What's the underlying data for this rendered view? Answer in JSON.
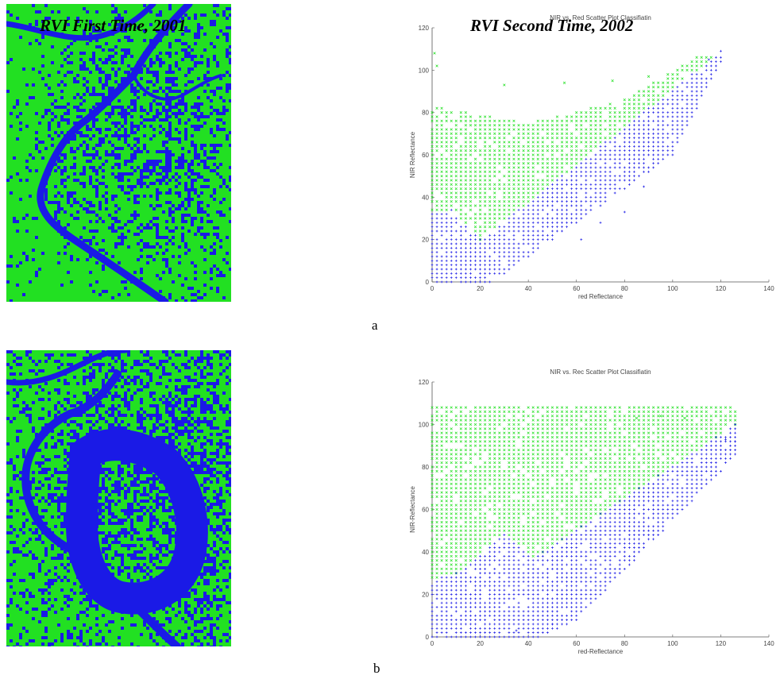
{
  "overlays": {
    "title_left": "RVI First Time, 2001",
    "title_right": "RVI Second Time, 2002"
  },
  "panel_labels": {
    "a": "a",
    "b": "b"
  },
  "colors": {
    "green": "#22e022",
    "blue": "#1a1ae6",
    "axis": "#555555"
  },
  "chart_data": [
    {
      "type": "scatter",
      "title": "NIR vs. Red Scatter Plot Classifiatin",
      "xlabel": "red Reflectance",
      "ylabel": "NIR Reflectance",
      "xlim": [
        0,
        140
      ],
      "ylim": [
        0,
        120
      ],
      "xticks": [
        0,
        20,
        40,
        60,
        80,
        100,
        120,
        140
      ],
      "yticks": [
        0,
        20,
        40,
        60,
        80,
        100,
        120
      ],
      "series": [
        {
          "color": "green",
          "marker": "x",
          "region": {
            "x_max": 118,
            "top_boundary": [
              [
                0,
                83
              ],
              [
                40,
                75
              ],
              [
                80,
                86
              ],
              [
                110,
                106
              ],
              [
                118,
                107
              ]
            ],
            "lower_boundary": [
              [
                0,
                33
              ],
              [
                8,
                34
              ],
              [
                20,
                20
              ],
              [
                118,
                107
              ]
            ],
            "scattered_outliers": [
              [
                1,
                108
              ],
              [
                2,
                102
              ],
              [
                30,
                93
              ],
              [
                55,
                94
              ],
              [
                75,
                95
              ],
              [
                90,
                97
              ]
            ]
          }
        },
        {
          "color": "blue",
          "marker": "+",
          "region": {
            "x_max": 122,
            "upper_boundary": [
              [
                0,
                33
              ],
              [
                8,
                34
              ],
              [
                20,
                20
              ],
              [
                118,
                107
              ]
            ],
            "lower_boundary": [
              [
                0,
                0
              ],
              [
                25,
                0
              ],
              [
                50,
                20
              ],
              [
                100,
                60
              ],
              [
                122,
                108
              ]
            ],
            "scattered_outliers": [
              [
                62,
                20
              ],
              [
                70,
                28
              ],
              [
                80,
                33
              ],
              [
                88,
                45
              ],
              [
                115,
                105
              ],
              [
                120,
                109
              ]
            ]
          }
        }
      ]
    },
    {
      "type": "scatter",
      "title": "NIR vs. Rec Scatter Plot Classifiatin",
      "xlabel": "red-Reflectance",
      "ylabel": "NIR-Reflectance",
      "xlim": [
        0,
        140
      ],
      "ylim": [
        0,
        120
      ],
      "xticks": [
        0,
        20,
        40,
        60,
        80,
        100,
        120,
        140
      ],
      "yticks": [
        0,
        20,
        40,
        60,
        80,
        100,
        120
      ],
      "series": [
        {
          "color": "green",
          "marker": "x",
          "region": {
            "x_max": 126,
            "top_boundary": [
              [
                0,
                108
              ],
              [
                126,
                108
              ]
            ],
            "lower_boundary": [
              [
                0,
                27
              ],
              [
                10,
                30
              ],
              [
                30,
                49
              ],
              [
                42,
                37
              ],
              [
                126,
                100
              ]
            ],
            "scattered_outliers": [
              [
                70,
                104
              ],
              [
                85,
                103
              ],
              [
                95,
                104
              ],
              [
                105,
                103
              ]
            ]
          }
        },
        {
          "color": "blue",
          "marker": "+",
          "region": {
            "x_max": 126,
            "upper_boundary": [
              [
                0,
                27
              ],
              [
                10,
                30
              ],
              [
                30,
                49
              ],
              [
                42,
                37
              ],
              [
                126,
                100
              ]
            ],
            "lower_boundary": [
              [
                0,
                0
              ],
              [
                45,
                0
              ],
              [
                60,
                8
              ],
              [
                126,
                85
              ]
            ],
            "scattered_outliers": [
              [
                35,
                3
              ],
              [
                50,
                6
              ],
              [
                122,
                93
              ],
              [
                126,
                92
              ]
            ]
          }
        }
      ]
    }
  ]
}
